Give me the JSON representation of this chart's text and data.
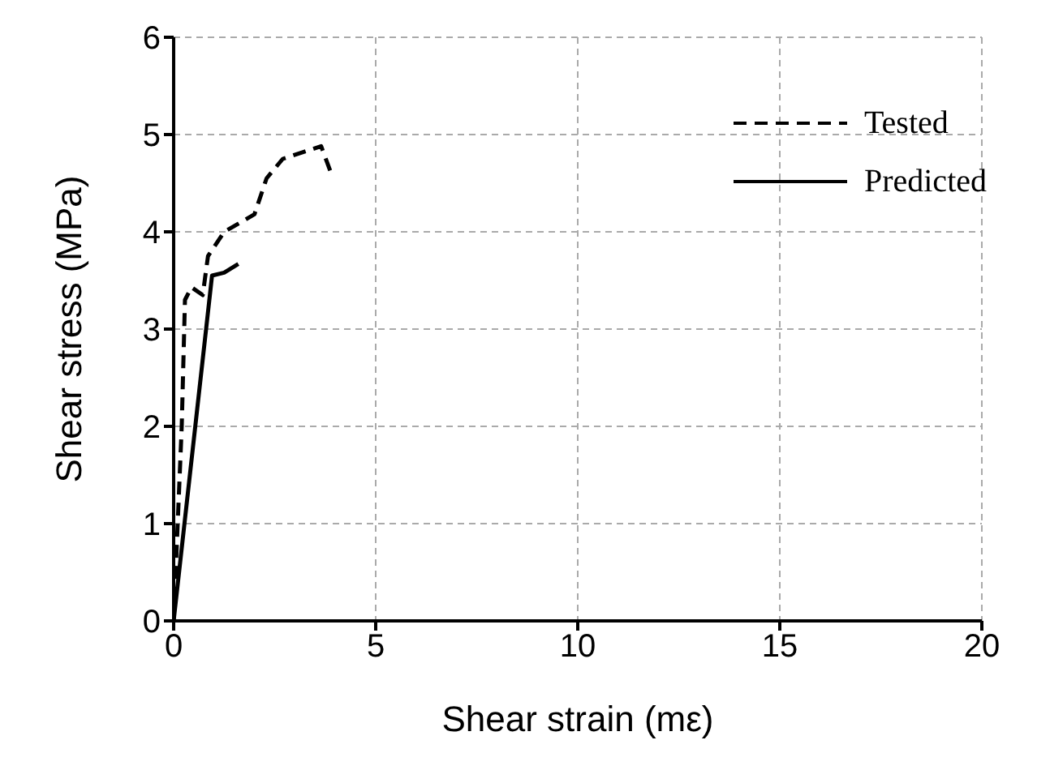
{
  "chart_data": {
    "type": "line",
    "xlabel": "Shear strain (mε)",
    "ylabel": "Shear stress (MPa)",
    "xlim": [
      0,
      20
    ],
    "xticks": [
      0,
      5,
      10,
      15,
      20
    ],
    "ylim": [
      0,
      6
    ],
    "yticks": [
      0,
      1,
      2,
      3,
      4,
      5,
      6
    ],
    "grid": true,
    "legend": "top right",
    "marker": "none",
    "series": [
      {
        "name": "Tested",
        "color": "#000000",
        "line_style": "dashed",
        "x": [
          0,
          0.2,
          0.28,
          0.44,
          0.72,
          0.85,
          1.25,
          2.0,
          2.3,
          2.7,
          3.65,
          3.9
        ],
        "values": [
          0,
          2,
          3.3,
          3.43,
          3.35,
          3.75,
          4.0,
          4.18,
          4.55,
          4.75,
          4.88,
          4.6
        ]
      },
      {
        "name": "Predicted",
        "color": "#000000",
        "line_style": "solid",
        "x": [
          0,
          0.95,
          1.25,
          1.6
        ],
        "values": [
          0,
          3.55,
          3.58,
          3.67
        ]
      }
    ]
  }
}
